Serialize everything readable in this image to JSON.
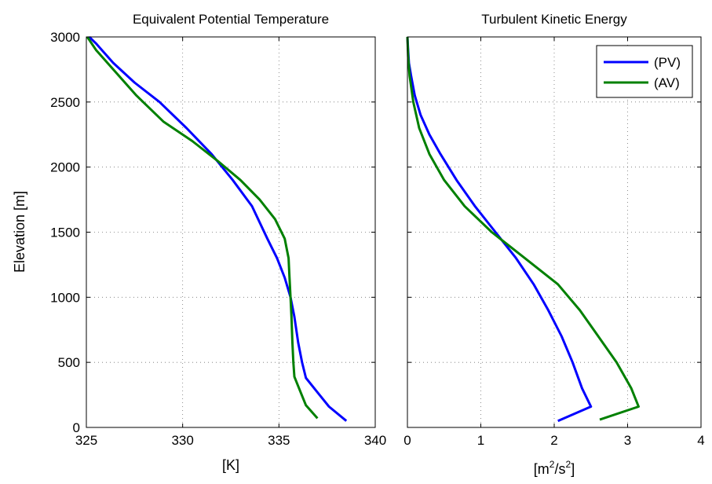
{
  "colors": {
    "pv": "#0000ff",
    "av": "#008000"
  },
  "chart_data": [
    {
      "type": "line",
      "title": "Equivalent Potential Temperature",
      "xlabel": "[K]",
      "ylabel": "Elevation [m]",
      "xlim": [
        325,
        340
      ],
      "ylim": [
        0,
        3000
      ],
      "xticks": [
        "325",
        "330",
        "335",
        "340"
      ],
      "yticks": [
        "0",
        "500",
        "1000",
        "1500",
        "2000",
        "2500",
        "3000"
      ],
      "grid": true,
      "series": [
        {
          "key": "pv",
          "x": [
            338.5,
            337.6,
            337.0,
            336.4,
            336.2,
            336.0,
            335.8,
            335.6,
            335.3,
            334.9,
            334.4,
            333.6,
            332.6,
            331.5,
            330.2,
            328.8,
            327.5,
            326.4,
            325.5,
            325.15
          ],
          "y": [
            50,
            160,
            270,
            380,
            500,
            650,
            850,
            1000,
            1150,
            1300,
            1450,
            1700,
            1900,
            2100,
            2300,
            2500,
            2650,
            2800,
            2950,
            3000
          ]
        },
        {
          "key": "av",
          "x": [
            337.0,
            336.4,
            336.1,
            335.8,
            335.75,
            335.7,
            335.65,
            335.6,
            335.55,
            335.5,
            335.3,
            334.8,
            334.0,
            333.0,
            331.8,
            330.5,
            329.0,
            327.6,
            326.4,
            325.5,
            325.05
          ],
          "y": [
            70,
            170,
            280,
            390,
            500,
            650,
            850,
            1000,
            1150,
            1300,
            1450,
            1600,
            1750,
            1900,
            2050,
            2200,
            2350,
            2550,
            2750,
            2900,
            3000
          ]
        }
      ]
    },
    {
      "type": "line",
      "title": "Turbulent Kinetic Energy",
      "xlabel_base": "[m",
      "xlabel_sup1": "2",
      "xlabel_mid": "/s",
      "xlabel_sup2": "2",
      "xlabel_end": "]",
      "xlim": [
        0,
        4
      ],
      "ylim": [
        0,
        3000
      ],
      "xticks": [
        "0",
        "1",
        "2",
        "3",
        "4"
      ],
      "yticks": [
        "0",
        "500",
        "1000",
        "1500",
        "2000",
        "2500",
        "3000"
      ],
      "grid": true,
      "legend": {
        "placement": "top-right",
        "entries": [
          "(PV)",
          "(AV)"
        ]
      },
      "series": [
        {
          "key": "pv",
          "name": "(PV)",
          "x": [
            2.05,
            2.5,
            2.38,
            2.25,
            2.1,
            1.92,
            1.72,
            1.48,
            1.2,
            0.92,
            0.67,
            0.45,
            0.3,
            0.18,
            0.1,
            0.05,
            0.02,
            0.01,
            0.0
          ],
          "y": [
            50,
            160,
            300,
            500,
            700,
            900,
            1100,
            1300,
            1500,
            1700,
            1900,
            2100,
            2250,
            2400,
            2550,
            2700,
            2800,
            2900,
            3000
          ]
        },
        {
          "key": "av",
          "name": "(AV)",
          "x": [
            2.62,
            3.15,
            3.05,
            2.85,
            2.6,
            2.35,
            2.05,
            1.6,
            1.15,
            0.78,
            0.5,
            0.3,
            0.16,
            0.08,
            0.03,
            0.01,
            0.0
          ],
          "y": [
            60,
            160,
            300,
            500,
            700,
            900,
            1100,
            1300,
            1500,
            1700,
            1900,
            2100,
            2300,
            2500,
            2700,
            2850,
            3000
          ]
        }
      ]
    }
  ]
}
